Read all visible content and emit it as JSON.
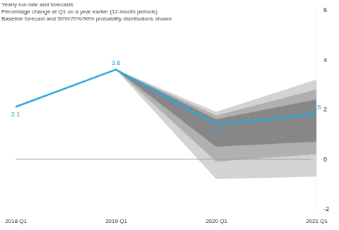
{
  "chart_data": {
    "type": "line",
    "title": "Yearly run rate and forecasts",
    "subtitle": "Percentage change at Q1 on a year earlier (12-month periods)",
    "annotation": "Baseline forecast and 50%/70%/90% probability distributions shown",
    "categories": [
      "2018 Q1",
      "2019 Q1",
      "2020 Q1",
      "2021 Q1"
    ],
    "series": [
      {
        "color": "#2aa8df",
        "values": [
          2.1,
          3.6,
          1.4,
          1.8
        ]
      }
    ],
    "bands": [
      {
        "color": "#d3d3d3",
        "lower": [
          null,
          3.6,
          -0.8,
          -0.7
        ],
        "upper": [
          null,
          3.6,
          1.9,
          3.2
        ]
      },
      {
        "color": "#b0b0b0",
        "lower": [
          null,
          3.6,
          -0.1,
          0.2
        ],
        "upper": [
          null,
          3.6,
          1.75,
          2.8
        ]
      },
      {
        "color": "#878787",
        "lower": [
          null,
          3.6,
          0.5,
          0.7
        ],
        "upper": [
          null,
          3.6,
          1.6,
          2.4
        ]
      }
    ],
    "baseline": 0,
    "ylim": [
      -2,
      6
    ],
    "yticks": [
      -2,
      0,
      2,
      4,
      6
    ],
    "grid": false,
    "data_labels": true
  }
}
